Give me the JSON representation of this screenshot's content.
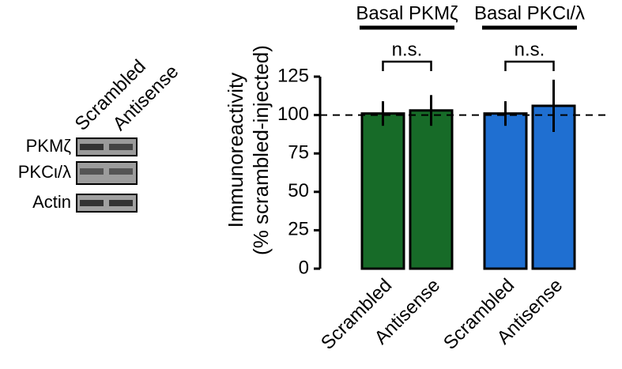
{
  "blot": {
    "columns": [
      "Scrambled",
      "Antisense"
    ],
    "rows": [
      "PKMζ",
      "PKCι/λ",
      "Actin"
    ]
  },
  "chart_data": {
    "type": "bar",
    "ylabel": [
      "Immunoreactivity",
      "(% scrambled-injected)"
    ],
    "ylim": [
      0,
      125
    ],
    "yticks": [
      0,
      25,
      50,
      75,
      100,
      125
    ],
    "reference_line": 100,
    "groups": [
      {
        "title": "Basal PKMζ",
        "color": "#176b28",
        "annotation": "n.s.",
        "categories": [
          "Scrambled",
          "Antisense"
        ],
        "values": [
          101,
          103
        ],
        "errors": [
          8,
          10
        ]
      },
      {
        "title": "Basal PKCι/λ",
        "color": "#1f6fd1",
        "annotation": "n.s.",
        "categories": [
          "Scrambled",
          "Antisense"
        ],
        "values": [
          101,
          106
        ],
        "errors": [
          8,
          17
        ]
      }
    ]
  }
}
